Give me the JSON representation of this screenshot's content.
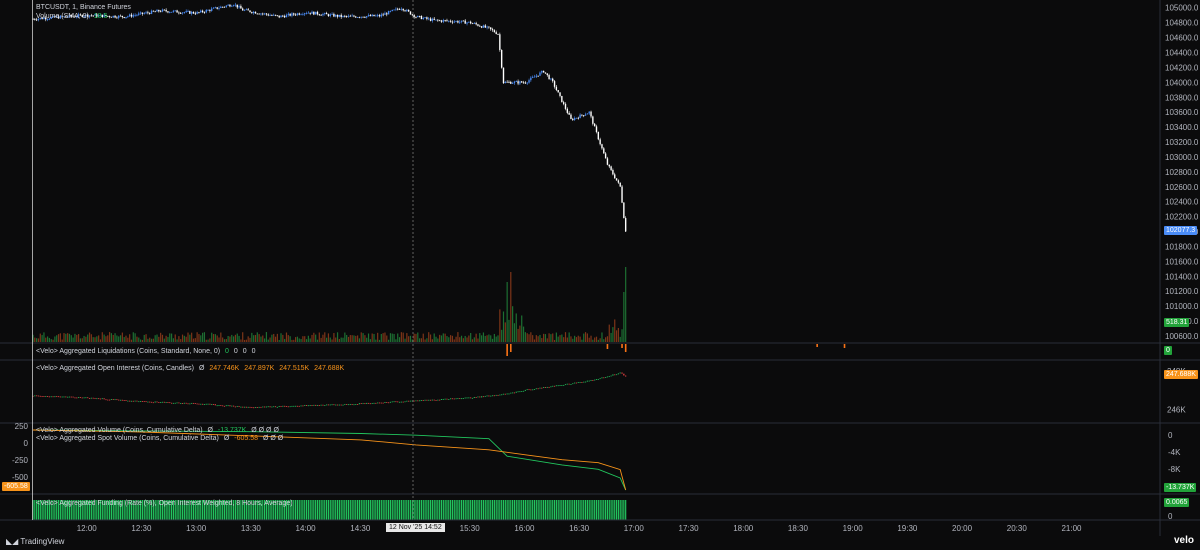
{
  "main_pane": {
    "symbol_line": "BTCUSDT, 1, Binance Futures",
    "volume_legend": "Volume (SMA, 9)",
    "volume_value": "18.5"
  },
  "panes": {
    "liquidations": {
      "legend": "<Velo> Aggregated Liquidations (Coins, Standard, None, 0)",
      "values": [
        "0",
        "0",
        "0",
        "0"
      ],
      "tag": "0"
    },
    "open_interest": {
      "legend": "<Velo> Aggregated Open Interest (Coins, Candles)",
      "prefix": "Ø",
      "values": [
        "247.746K",
        "247.897K",
        "247.515K",
        "247.688K"
      ],
      "tag": "247.688K"
    },
    "volume_delta": {
      "legend": "<Velo> Aggregated Volume (Coins, Cumulative Delta)",
      "prefix": "Ø",
      "value": "-13.737K",
      "rest": "Ø Ø Ø Ø",
      "tag": "-13.737K"
    },
    "spot_delta": {
      "legend": "<Velo> Aggregated Spot Volume (Coins, Cumulative Delta)",
      "prefix": "Ø",
      "value": "-605.58",
      "rest": "Ø Ø Ø",
      "tag": "-605.58"
    },
    "funding": {
      "legend": "<Velo> Aggregated Funding (Rate (%), Open Interest Weighted, 8 Hours, Average)",
      "tag": "0.0065"
    }
  },
  "price_tag": "102077.3",
  "volume_tag": "518.31",
  "crosshair_time": "12 Nov '25   14:52",
  "footer": {
    "tradingview": "TradingView",
    "velo": "velo"
  },
  "colors": {
    "up": "#4a8cf7",
    "down": "#ffffff",
    "green": "#22c55e",
    "orange": "#f7931a",
    "red": "#ef4444"
  },
  "chart_data": [
    {
      "type": "line",
      "title": "BTCUSDT, 1, Binance Futures",
      "x_ticks": [
        "12:00",
        "12:30",
        "13:00",
        "13:30",
        "14:00",
        "14:30",
        "15:00",
        "15:30",
        "16:00",
        "16:30",
        "17:00",
        "17:30",
        "18:00",
        "18:30",
        "19:00",
        "19:30",
        "20:00",
        "20:30",
        "21:00"
      ],
      "y_ticks": [
        "105000.0",
        "104800.0",
        "104600.0",
        "104400.0",
        "104200.0",
        "104000.0",
        "103800.0",
        "103600.0",
        "103400.0",
        "103200.0",
        "103000.0",
        "102800.0",
        "102600.0",
        "102400.0",
        "102200.0",
        "102000.0",
        "101800.0",
        "101600.0",
        "101400.0",
        "101200.0",
        "101000.0",
        "100800.0",
        "100600.0"
      ],
      "ylim": [
        100600,
        105050
      ],
      "x_minutes_range": [
        -30,
        588
      ],
      "series": [
        {
          "values_time": [
            "11:30",
            "12:00",
            "12:20",
            "12:40",
            "13:00",
            "13:20",
            "13:25",
            "13:45",
            "14:00",
            "14:20",
            "14:40",
            "14:52",
            "15:00",
            "15:10",
            "15:20",
            "15:30",
            "15:40",
            "15:45",
            "15:48",
            "16:00",
            "16:10",
            "16:15",
            "16:25",
            "16:35",
            "16:45",
            "16:52",
            "16:55"
          ],
          "values": [
            104850,
            104900,
            104880,
            104960,
            104930,
            105050,
            104970,
            104880,
            104940,
            104880,
            104890,
            105000,
            104880,
            104830,
            104820,
            104800,
            104720,
            104650,
            104000,
            104000,
            104150,
            104000,
            103500,
            103600,
            102900,
            102600,
            102000
          ]
        }
      ]
    },
    {
      "type": "line",
      "title": "<Velo> Aggregated Open Interest (Coins, Candles)",
      "y_ticks": [
        "248K",
        "246K"
      ],
      "ylim": [
        245500,
        248300
      ],
      "series": [
        {
          "values_time": [
            "11:30",
            "12:00",
            "12:30",
            "13:00",
            "13:30",
            "14:00",
            "14:30",
            "15:00",
            "15:30",
            "15:50",
            "16:00",
            "16:30",
            "16:45",
            "16:52",
            "16:55"
          ],
          "values": [
            246700,
            246600,
            246400,
            246300,
            246100,
            246200,
            246300,
            246450,
            246600,
            246800,
            247000,
            247400,
            247700,
            247900,
            247700
          ]
        }
      ]
    },
    {
      "type": "line",
      "title": "<Velo> Aggregated Volume (Coins, Cumulative Delta)",
      "y_ticks_right": [
        "0",
        "-4K",
        "-8K",
        "-12K"
      ],
      "y_ticks_left": [
        "250",
        "0",
        "-250",
        "-500"
      ],
      "series": [
        {
          "name": "<Velo> Aggregated Volume (Coins, Cumulative Delta)",
          "values_time": [
            "11:30",
            "12:30",
            "13:30",
            "14:30",
            "15:00",
            "15:40",
            "15:50",
            "16:20",
            "16:40",
            "16:52",
            "16:55"
          ],
          "values": [
            0,
            -200,
            -400,
            -800,
            -1200,
            -2000,
            -6000,
            -8000,
            -9000,
            -11000,
            -13737
          ]
        },
        {
          "name": "<Velo> Aggregated Spot Volume (Coins, Cumulative Delta)",
          "values_time": [
            "11:30",
            "12:30",
            "13:30",
            "14:30",
            "15:00",
            "15:40",
            "16:00",
            "16:20",
            "16:40",
            "16:52",
            "16:55"
          ],
          "values": [
            0,
            -20,
            -60,
            -100,
            -150,
            -200,
            -250,
            -300,
            -330,
            -400,
            -605.58
          ]
        }
      ]
    },
    {
      "type": "bar",
      "title": "<Velo> Aggregated Funding (Rate (%), Open Interest Weighted, 8 Hours, Average)",
      "y_ticks": [
        "0"
      ],
      "values_constant": 0.0065
    }
  ]
}
